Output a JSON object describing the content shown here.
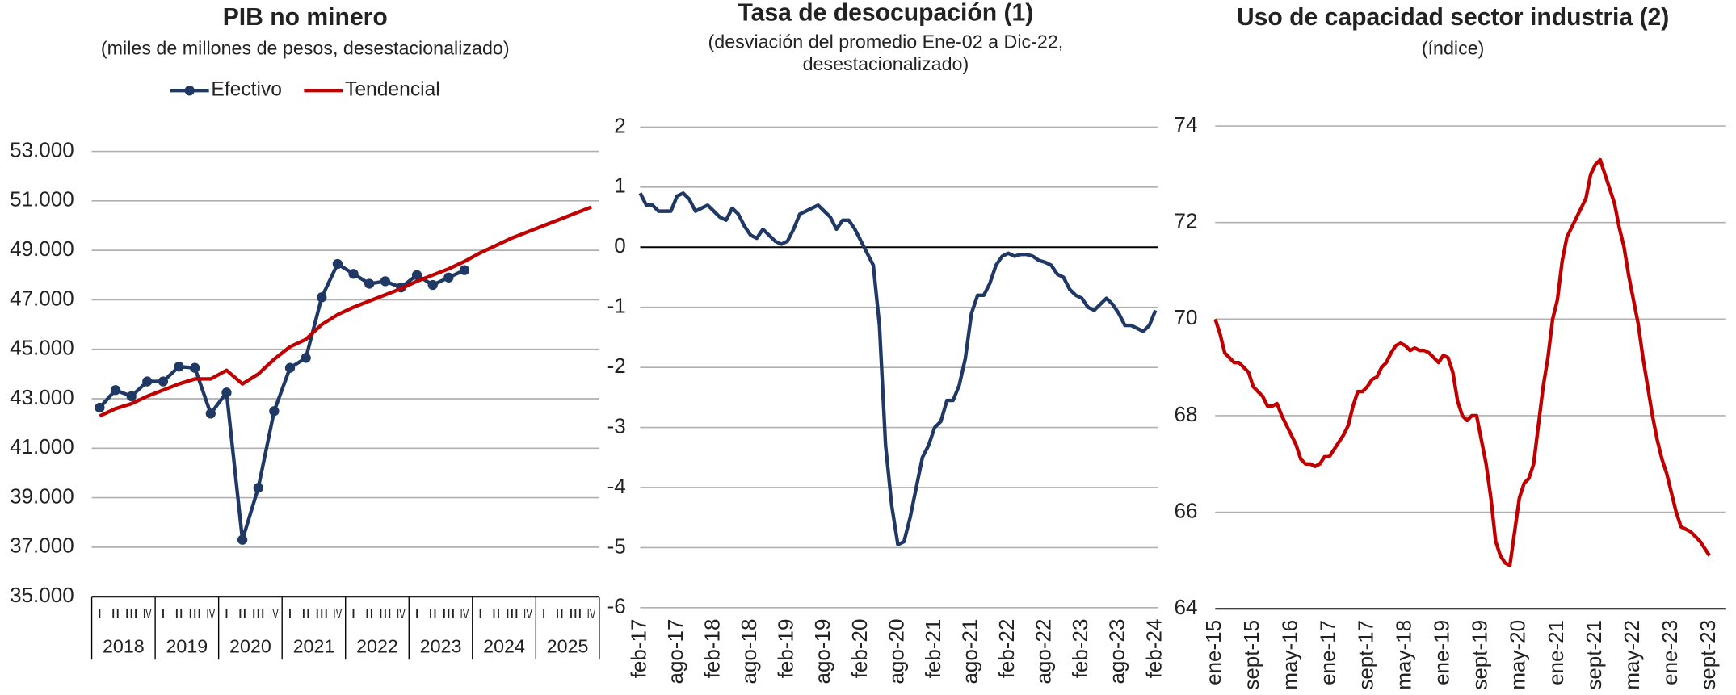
{
  "chart_data": [
    {
      "type": "line",
      "title": "PIB no minero",
      "subtitle": "(miles de millones de pesos, desestacionalizado)",
      "categories": [
        "I",
        "II",
        "III",
        "IV",
        "I",
        "II",
        "III",
        "IV",
        "I",
        "II",
        "III",
        "IV",
        "I",
        "II",
        "III",
        "IV",
        "I",
        "II",
        "III",
        "IV",
        "I",
        "II",
        "III",
        "IV",
        "I",
        "II",
        "III",
        "IV",
        "I",
        "II",
        "III",
        "IV"
      ],
      "groups": [
        "2018",
        "2019",
        "2020",
        "2021",
        "2022",
        "2023",
        "2024",
        "2025"
      ],
      "series": [
        {
          "name": "Efectivo",
          "color": "#203864",
          "marker": "circle",
          "values": [
            42640,
            43350,
            43100,
            43700,
            43700,
            44300,
            44250,
            42400,
            43250,
            37300,
            39400,
            42500,
            44250,
            44650,
            47100,
            48450,
            48050,
            47650,
            47750,
            47500,
            48000,
            47600,
            47900,
            48200,
            null,
            null,
            null,
            null,
            null,
            null,
            null,
            null
          ]
        },
        {
          "name": "Tendencial",
          "color": "#c00000",
          "values": [
            42300,
            42600,
            42800,
            43100,
            43350,
            43600,
            43800,
            43800,
            44150,
            43600,
            44000,
            44600,
            45100,
            45400,
            46000,
            46400,
            46700,
            46950,
            47200,
            47450,
            47750,
            48000,
            48250,
            48550,
            48900,
            49200,
            49500,
            49750,
            50000,
            50250,
            50500,
            50750
          ]
        }
      ],
      "ylim": [
        35000,
        53000
      ],
      "yticks": [
        {
          "value": 35000,
          "label": "35.000"
        },
        {
          "value": 37000,
          "label": "37.000"
        },
        {
          "value": 39000,
          "label": "39.000"
        },
        {
          "value": 41000,
          "label": "41.000"
        },
        {
          "value": 43000,
          "label": "43.000"
        },
        {
          "value": 45000,
          "label": "45.000"
        },
        {
          "value": 47000,
          "label": "47.000"
        },
        {
          "value": 49000,
          "label": "49.000"
        },
        {
          "value": 51000,
          "label": "51.000"
        },
        {
          "value": 53000,
          "label": "53.000"
        }
      ],
      "grid": true,
      "legend": "top"
    },
    {
      "type": "line",
      "title": "Tasa de desocupación (1)",
      "subtitle": [
        "(desviación del promedio Ene-02 a Dic-22,",
        "desestacionalizado)"
      ],
      "categories": [
        "feb-17",
        null,
        null,
        null,
        null,
        null,
        "ago-17",
        null,
        null,
        null,
        null,
        null,
        "feb-18",
        null,
        null,
        null,
        null,
        null,
        "ago-18",
        null,
        null,
        null,
        null,
        null,
        "feb-19",
        null,
        null,
        null,
        null,
        null,
        "ago-19",
        null,
        null,
        null,
        null,
        null,
        "feb-20",
        null,
        null,
        null,
        null,
        null,
        "ago-20",
        null,
        null,
        null,
        null,
        null,
        "feb-21",
        null,
        null,
        null,
        null,
        null,
        "ago-21",
        null,
        null,
        null,
        null,
        null,
        "feb-22",
        null,
        null,
        null,
        null,
        null,
        "ago-22",
        null,
        null,
        null,
        null,
        null,
        "feb-23",
        null,
        null,
        null,
        null,
        null,
        "ago-23",
        null,
        null,
        null,
        null,
        null,
        "feb-24"
      ],
      "series": [
        {
          "color": "#203864",
          "values": [
            0.9,
            0.7,
            0.7,
            0.6,
            0.6,
            0.6,
            0.85,
            0.9,
            0.8,
            0.6,
            0.65,
            0.7,
            0.6,
            0.5,
            0.45,
            0.65,
            0.55,
            0.35,
            0.2,
            0.15,
            0.3,
            0.2,
            0.1,
            0.05,
            0.1,
            0.3,
            0.55,
            0.6,
            0.65,
            0.7,
            0.6,
            0.5,
            0.3,
            0.45,
            0.45,
            0.3,
            0.1,
            -0.1,
            -0.3,
            -1.3,
            -3.3,
            -4.3,
            -4.95,
            -4.9,
            -4.5,
            -4.0,
            -3.5,
            -3.3,
            -3.0,
            -2.9,
            -2.55,
            -2.55,
            -2.3,
            -1.85,
            -1.1,
            -0.8,
            -0.8,
            -0.6,
            -0.3,
            -0.15,
            -0.1,
            -0.15,
            -0.12,
            -0.12,
            -0.15,
            -0.22,
            -0.25,
            -0.3,
            -0.45,
            -0.5,
            -0.7,
            -0.8,
            -0.85,
            -1.0,
            -1.05,
            -0.95,
            -0.85,
            -0.95,
            -1.1,
            -1.3,
            -1.3,
            -1.35,
            -1.4,
            -1.3,
            -1.05
          ]
        }
      ],
      "ylim": [
        -6,
        2
      ],
      "yticks": [
        -6,
        -5,
        -4,
        -3,
        -2,
        -1,
        0,
        1,
        2
      ],
      "grid": true
    },
    {
      "type": "line",
      "title": "Uso de capacidad sector industria (2)",
      "subtitle": "(índice)",
      "categories": [
        "ene-15",
        null,
        null,
        null,
        null,
        null,
        null,
        null,
        "sept-15",
        null,
        null,
        null,
        null,
        null,
        null,
        null,
        "may-16",
        null,
        null,
        null,
        null,
        null,
        null,
        null,
        "ene-17",
        null,
        null,
        null,
        null,
        null,
        null,
        null,
        "sept-17",
        null,
        null,
        null,
        null,
        null,
        null,
        null,
        "may-18",
        null,
        null,
        null,
        null,
        null,
        null,
        null,
        "ene-19",
        null,
        null,
        null,
        null,
        null,
        null,
        null,
        "sept-19",
        null,
        null,
        null,
        null,
        null,
        null,
        null,
        "may-20",
        null,
        null,
        null,
        null,
        null,
        null,
        null,
        "ene-21",
        null,
        null,
        null,
        null,
        null,
        null,
        null,
        "sept-21",
        null,
        null,
        null,
        null,
        null,
        null,
        null,
        "may-22",
        null,
        null,
        null,
        null,
        null,
        null,
        null,
        "ene-23",
        null,
        null,
        null,
        null,
        null,
        null,
        null,
        "sept-23"
      ],
      "series": [
        {
          "color": "#c00000",
          "values": [
            70.0,
            69.7,
            69.3,
            69.2,
            69.1,
            69.1,
            69.0,
            68.9,
            68.6,
            68.5,
            68.4,
            68.2,
            68.2,
            68.25,
            68.0,
            67.8,
            67.6,
            67.4,
            67.1,
            67.0,
            67.0,
            66.95,
            67.0,
            67.15,
            67.15,
            67.3,
            67.45,
            67.6,
            67.8,
            68.2,
            68.5,
            68.5,
            68.6,
            68.75,
            68.8,
            69.0,
            69.1,
            69.3,
            69.45,
            69.5,
            69.45,
            69.35,
            69.4,
            69.35,
            69.35,
            69.3,
            69.2,
            69.1,
            69.25,
            69.2,
            68.9,
            68.3,
            68.0,
            67.9,
            68.0,
            68.0,
            67.5,
            67.0,
            66.3,
            65.4,
            65.1,
            64.95,
            64.9,
            65.6,
            66.3,
            66.6,
            66.7,
            67.0,
            67.8,
            68.6,
            69.2,
            70.0,
            70.4,
            71.2,
            71.7,
            71.9,
            72.1,
            72.3,
            72.5,
            73.0,
            73.2,
            73.3,
            73.0,
            72.7,
            72.4,
            71.9,
            71.5,
            70.9,
            70.4,
            69.9,
            69.2,
            68.6,
            68.0,
            67.5,
            67.1,
            66.8,
            66.4,
            66.0,
            65.7,
            65.65,
            65.6,
            65.5,
            65.4,
            65.25,
            65.1
          ]
        }
      ],
      "ylim": [
        64,
        74
      ],
      "yticks": [
        64,
        66,
        68,
        70,
        72,
        74
      ],
      "grid": true
    }
  ]
}
